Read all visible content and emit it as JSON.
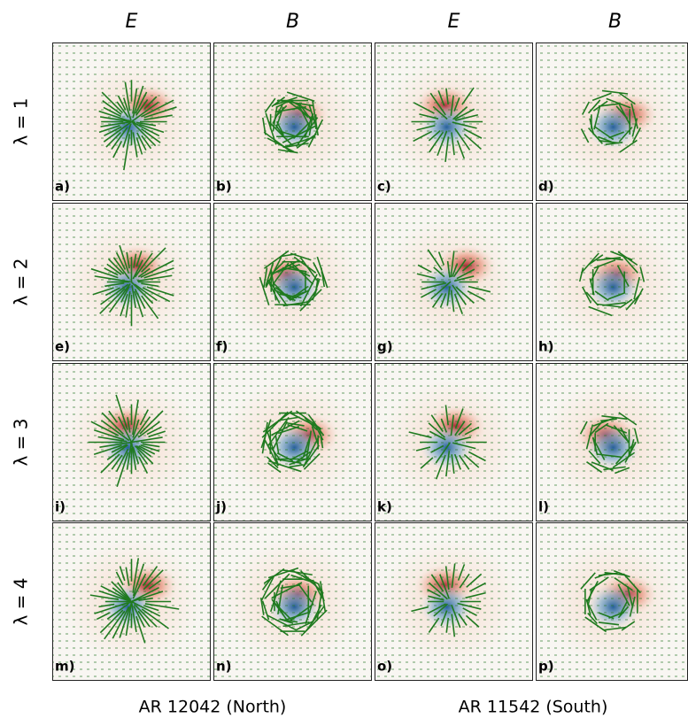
{
  "columns": [
    "E",
    "B",
    "E",
    "B"
  ],
  "rows": [
    "λ = 1",
    "λ = 2",
    "λ = 3",
    "λ = 4"
  ],
  "panels": [
    "a)",
    "b)",
    "c)",
    "d)",
    "e)",
    "f)",
    "g)",
    "h)",
    "i)",
    "j)",
    "k)",
    "l)",
    "m)",
    "n)",
    "o)",
    "p)"
  ],
  "groups": [
    "AR 12042 (North)",
    "AR 11542 (South)"
  ]
}
